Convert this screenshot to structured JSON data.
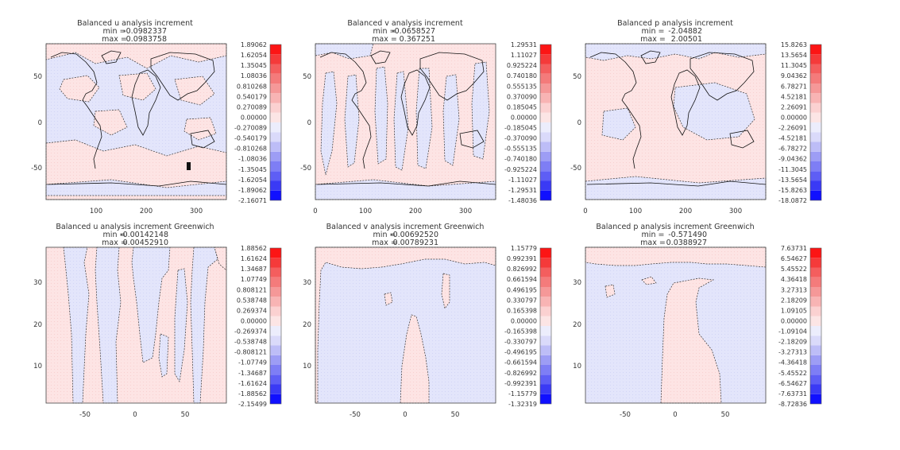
{
  "colors": {
    "positive_fill": "#fde4e4",
    "negative_fill": "#e3e5fb",
    "contour": "#333333",
    "coast": "#111111",
    "colorbar": [
      "#1010ff",
      "#3a3af5",
      "#5e5ef5",
      "#7e7ef5",
      "#9d9df5",
      "#bdbdf7",
      "#dadafa",
      "#ecedfc",
      "#fce5e5",
      "#fbd1d1",
      "#f8b4b4",
      "#f59898",
      "#f47b7b",
      "#f45e5e",
      "#f53a3a",
      "#fc1515"
    ]
  },
  "chart_data": [
    {
      "type": "heatmap",
      "title": "Balanced u analysis increment",
      "min_label": "min =",
      "min_value": "-0.0982337",
      "max_label": "max =",
      "max_value": "0.0983758",
      "xticks": [
        "100",
        "200",
        "300"
      ],
      "yticks": [
        "50",
        "0",
        "-50"
      ],
      "xlim": [
        0,
        360
      ],
      "ylim": [
        -90,
        90
      ],
      "colorbar_labels": [
        "1.89062",
        "1.62054",
        "1.35045",
        "1.08036",
        "0.810268",
        "0.540179",
        "0.270089",
        "0.00000",
        "-0.270089",
        "-0.540179",
        "-0.810268",
        "-1.08036",
        "-1.35045",
        "-1.62054",
        "-1.89062",
        "-2.16071"
      ]
    },
    {
      "type": "heatmap",
      "title": "Balanced v analysis increment",
      "min_label": "min =",
      "min_value": "-0.0658527",
      "max_label": "max =",
      "max_value": "0.367251",
      "xticks": [
        "0",
        "100",
        "200",
        "300"
      ],
      "yticks": [
        "50",
        "0",
        "-50"
      ],
      "xlim": [
        0,
        360
      ],
      "ylim": [
        -90,
        90
      ],
      "colorbar_labels": [
        "1.29531",
        "1.11027",
        "0.925224",
        "0.740180",
        "0.555135",
        "0.370090",
        "0.185045",
        "0.00000",
        "-0.185045",
        "-0.370090",
        "-0.555135",
        "-0.740180",
        "-0.925224",
        "-1.11027",
        "-1.29531",
        "-1.48036"
      ]
    },
    {
      "type": "heatmap",
      "title": "Balanced p analysis increment",
      "min_label": "min =",
      "min_value": "-2.04882",
      "max_label": "max =",
      "max_value": "2.00501",
      "xticks": [
        "0",
        "100",
        "200",
        "300"
      ],
      "yticks": [
        "50",
        "0",
        "-50"
      ],
      "xlim": [
        0,
        360
      ],
      "ylim": [
        -90,
        90
      ],
      "colorbar_labels": [
        "15.8263",
        "13.5654",
        "11.3045",
        "9.04362",
        "6.78271",
        "4.52181",
        "2.26091",
        "0.00000",
        "-2.26091",
        "-4.52181",
        "-6.78272",
        "-9.04362",
        "-11.3045",
        "-13.5654",
        "-15.8263",
        "-18.0872"
      ]
    },
    {
      "type": "heatmap",
      "title": "Balanced u analysis increment Greenwich",
      "min_label": "min =",
      "min_value": "-0.00142148",
      "max_label": "max =",
      "max_value": "0.00452910",
      "xticks": [
        "-50",
        "0",
        "50"
      ],
      "yticks": [
        "30",
        "20",
        "10"
      ],
      "xlim": [
        -90,
        90
      ],
      "ylim": [
        0,
        38
      ],
      "colorbar_labels": [
        "1.88562",
        "1.61624",
        "1.34687",
        "1.07749",
        "0.808121",
        "0.538748",
        "0.269374",
        "0.00000",
        "-0.269374",
        "-0.538748",
        "-0.808121",
        "-1.07749",
        "-1.34687",
        "-1.61624",
        "-1.88562",
        "-2.15499"
      ]
    },
    {
      "type": "heatmap",
      "title": "Balanced v analysis increment Greenwich",
      "min_label": "min =",
      "min_value": "-0.00692520",
      "max_label": "max =",
      "max_value": "0.00789231",
      "xticks": [
        "-50",
        "0",
        "50"
      ],
      "yticks": [
        "30",
        "20",
        "10"
      ],
      "xlim": [
        -90,
        90
      ],
      "ylim": [
        0,
        38
      ],
      "colorbar_labels": [
        "1.15779",
        "0.992391",
        "0.826992",
        "0.661594",
        "0.496195",
        "0.330797",
        "0.165398",
        "0.00000",
        "-0.165398",
        "-0.330797",
        "-0.496195",
        "-0.661594",
        "-0.826992",
        "-0.992391",
        "-1.15779",
        "-1.32319"
      ]
    },
    {
      "type": "heatmap",
      "title": "Balanced p analysis increment Greenwich",
      "min_label": "min =",
      "min_value": "-0.571490",
      "max_label": "max =",
      "max_value": "0.0388927",
      "xticks": [
        "-50",
        "0",
        "50"
      ],
      "yticks": [
        "30",
        "20",
        "10"
      ],
      "xlim": [
        -90,
        90
      ],
      "ylim": [
        0,
        38
      ],
      "colorbar_labels": [
        "7.63731",
        "6.54627",
        "5.45522",
        "4.36418",
        "3.27313",
        "2.18209",
        "1.09105",
        "0.00000",
        "-1.09104",
        "-2.18209",
        "-3.27313",
        "-4.36418",
        "-5.45522",
        "-6.54627",
        "-7.63731",
        "-8.72836"
      ]
    }
  ]
}
